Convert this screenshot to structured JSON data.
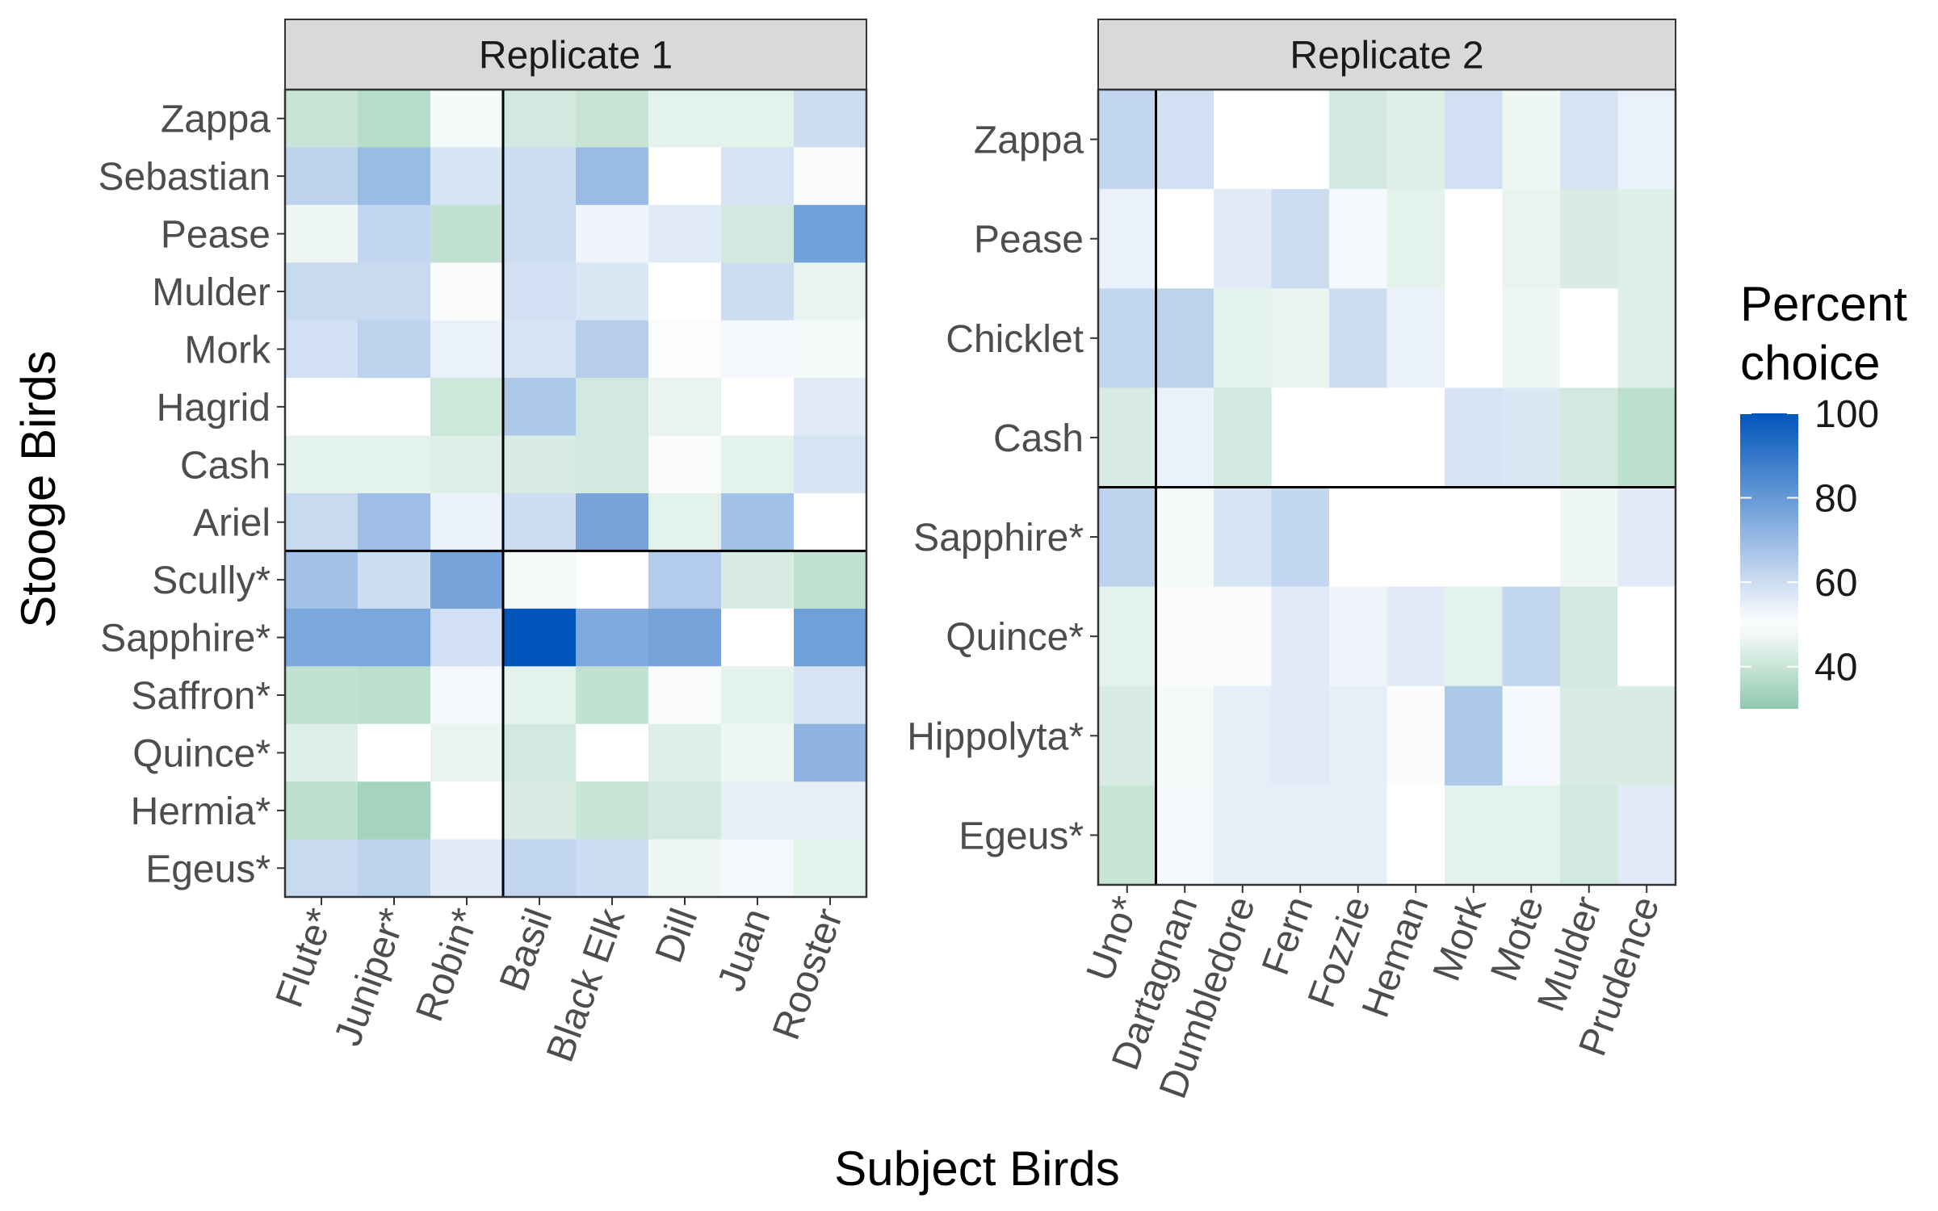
{
  "chart_data": {
    "type": "heatmap",
    "xlabel": "Subject Birds",
    "ylabel": "Stooge Birds",
    "legend": {
      "title": [
        "Percent",
        "choice"
      ],
      "position": "right",
      "ticks": [
        100,
        80,
        60,
        40
      ],
      "range": [
        30,
        100
      ],
      "colors": {
        "low": "#8FC9AE",
        "mid": "#FFFFFF",
        "high": "#0055BB"
      },
      "midpoint": 50
    },
    "panels": [
      {
        "title": "Replicate 1",
        "x": [
          "Flute*",
          "Juniper*",
          "Robin*",
          "Basil",
          "Black Elk",
          "Dill",
          "Juan",
          "Rooster"
        ],
        "y": [
          "Zappa",
          "Sebastian",
          "Pease",
          "Mulder",
          "Mork",
          "Hagrid",
          "Cash",
          "Ariel",
          "Scully*",
          "Sapphire*",
          "Saffron*",
          "Quince*",
          "Hermia*",
          "Egeus*"
        ],
        "divider_after_column": 3,
        "divider_after_row": 8,
        "values": [
          [
            40,
            37,
            48,
            42,
            40,
            45,
            45,
            60
          ],
          [
            63,
            70,
            58,
            60,
            70,
            50,
            58,
            49
          ],
          [
            47,
            62,
            39,
            60,
            53,
            56,
            42,
            78
          ],
          [
            61,
            61,
            49,
            59,
            57,
            50,
            60,
            46
          ],
          [
            59,
            63,
            54,
            58,
            64,
            51,
            52,
            48
          ],
          [
            50,
            50,
            41,
            66,
            42,
            46,
            50,
            56
          ],
          [
            45,
            45,
            44,
            43,
            42,
            49,
            45,
            58
          ],
          [
            61,
            69,
            54,
            60,
            77,
            45,
            68,
            50
          ],
          [
            68,
            60,
            77,
            48,
            50,
            65,
            43,
            39
          ],
          [
            76,
            76,
            59,
            100,
            75,
            77,
            50,
            78
          ],
          [
            39,
            38,
            52,
            45,
            39,
            49,
            45,
            58
          ],
          [
            44,
            50,
            46,
            42,
            50,
            44,
            47,
            72
          ],
          [
            38,
            34,
            50,
            43,
            40,
            42,
            55,
            55
          ],
          [
            61,
            63,
            56,
            62,
            60,
            47,
            52,
            45
          ]
        ]
      },
      {
        "title": "Replicate 2",
        "x": [
          "Uno*",
          "Dartagnan",
          "Dumbledore",
          "Fern",
          "Fozzie",
          "Heman",
          "Mork",
          "Mote",
          "Mulder",
          "Prudence"
        ],
        "y": [
          "Zappa",
          "Pease",
          "Chicklet",
          "Cash",
          "Sapphire*",
          "Quince*",
          "Hippolyta*",
          "Egeus*"
        ],
        "divider_after_column": 1,
        "divider_after_row": 4,
        "values": [
          [
            62,
            59,
            50,
            50,
            42,
            44,
            59,
            47,
            58,
            54
          ],
          [
            54,
            50,
            56,
            60,
            52,
            45,
            50,
            46,
            43,
            44
          ],
          [
            62,
            63,
            45,
            46,
            60,
            54,
            50,
            47,
            50,
            44
          ],
          [
            43,
            54,
            42,
            50,
            50,
            50,
            58,
            57,
            42,
            38
          ],
          [
            63,
            48,
            58,
            62,
            50,
            50,
            50,
            50,
            47,
            56
          ],
          [
            45,
            49,
            49,
            56,
            53,
            56,
            45,
            62,
            42,
            50
          ],
          [
            43,
            48,
            55,
            56,
            55,
            49,
            66,
            52,
            43,
            43
          ],
          [
            40,
            52,
            55,
            55,
            55,
            50,
            45,
            45,
            42,
            56
          ]
        ]
      }
    ]
  }
}
